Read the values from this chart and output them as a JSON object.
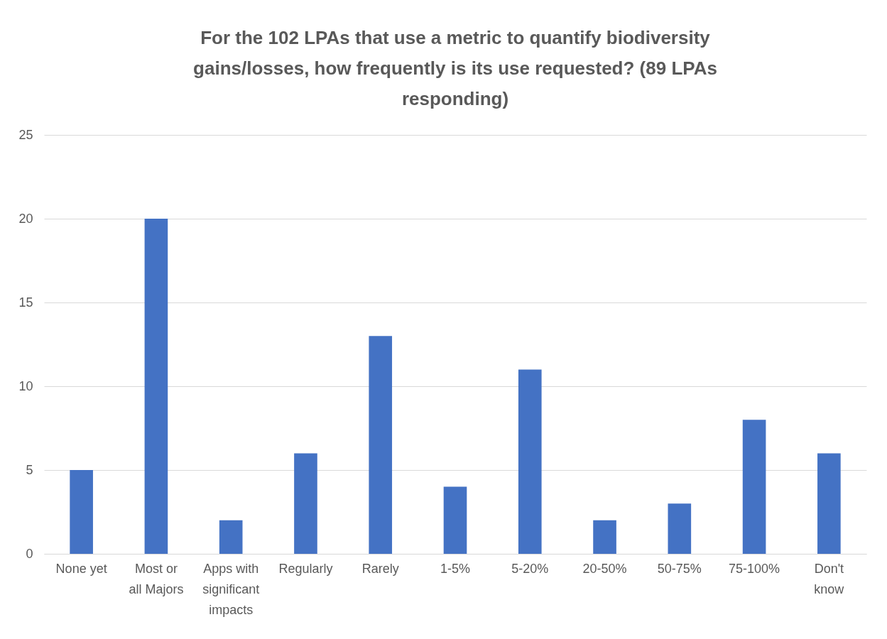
{
  "chart_data": {
    "type": "bar",
    "title": "For the 102 LPAs that use a metric to quantify biodiversity gains/losses, how frequently is its use requested? (89 LPAs responding)",
    "categories": [
      "None yet",
      "Most or all Majors",
      "Apps with significant impacts",
      "Regularly",
      "Rarely",
      "1-5%",
      "5-20%",
      "20-50%",
      "50-75%",
      "75-100%",
      "Don't know"
    ],
    "series": [
      {
        "color": "#4472c4",
        "values": [
          5,
          20,
          2,
          6,
          13,
          4,
          11,
          2,
          3,
          8,
          6
        ]
      }
    ],
    "ylim": [
      0,
      25
    ],
    "yticks": [
      0,
      5,
      10,
      15,
      20,
      25
    ],
    "grid": "y"
  }
}
